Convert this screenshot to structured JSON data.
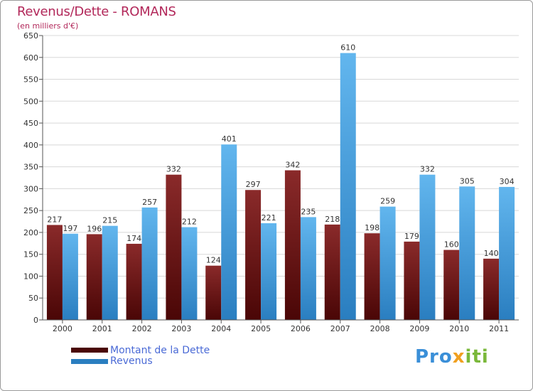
{
  "header": {
    "title": "Revenus/Dette - ROMANS",
    "subtitle": "(en milliers d'€)"
  },
  "legend": {
    "dette_label": "Montant de la Dette",
    "revenus_label": "Revenus"
  },
  "brand": {
    "part1": "Pro",
    "part2": "x",
    "part3": "iti"
  },
  "colors": {
    "dette_top": "#8a2a2a",
    "dette_bottom": "#4a0606",
    "revenus_top": "#62b6ee",
    "revenus_bottom": "#2a7ec0",
    "gridline": "#d8d8d8",
    "axis": "#555555"
  },
  "chart_data": {
    "type": "bar",
    "title": "Revenus/Dette - ROMANS",
    "subtitle": "(en milliers d'€)",
    "xlabel": "",
    "ylabel": "",
    "ylim": [
      0,
      650
    ],
    "yticks": [
      0,
      50,
      100,
      150,
      200,
      250,
      300,
      350,
      400,
      450,
      500,
      550,
      600,
      650
    ],
    "grid": true,
    "legend_position": "bottom-left",
    "categories": [
      "2000",
      "2001",
      "2002",
      "2003",
      "2004",
      "2005",
      "2006",
      "2007",
      "2008",
      "2009",
      "2010",
      "2011"
    ],
    "series": [
      {
        "name": "Montant de la Dette",
        "values": [
          217,
          196,
          174,
          332,
          124,
          297,
          342,
          218,
          198,
          179,
          160,
          140
        ]
      },
      {
        "name": "Revenus",
        "values": [
          197,
          215,
          257,
          212,
          401,
          221,
          235,
          610,
          259,
          332,
          305,
          304
        ]
      }
    ]
  }
}
